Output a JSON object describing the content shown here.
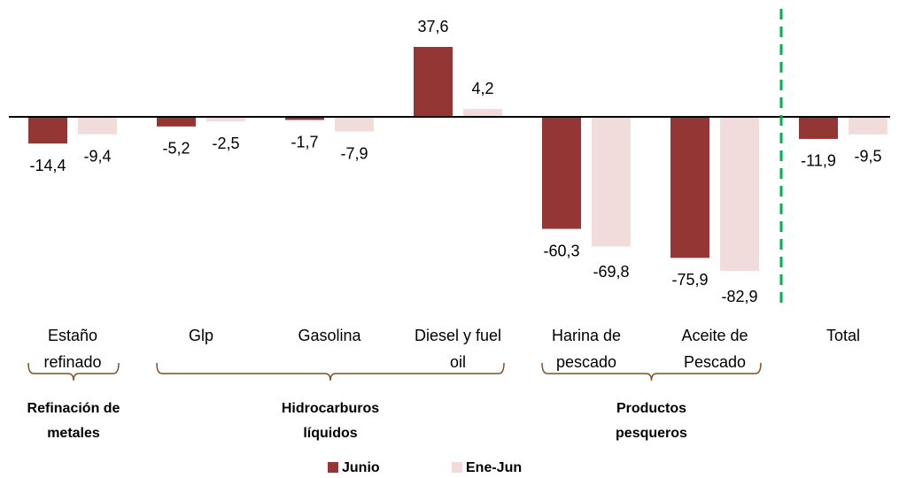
{
  "chart_data": {
    "type": "bar",
    "categories": [
      "Estaño refinado",
      "Glp",
      "Gasolina",
      "Diesel y fuel oil",
      "Harina de pescado",
      "Aceite de Pescado",
      "Total"
    ],
    "series": [
      {
        "name": "Junio",
        "color": "#943634",
        "values": [
          -14.4,
          -5.2,
          -1.7,
          37.6,
          -60.3,
          -75.9,
          -11.9
        ],
        "value_labels": [
          "-14,4",
          "-5,2",
          "-1,7",
          "37,6",
          "-60,3",
          "-75,9",
          "-11,9"
        ]
      },
      {
        "name": "Ene-Jun",
        "color": "#f2dcdb",
        "values": [
          -9.4,
          -2.5,
          -7.9,
          4.2,
          -69.8,
          -82.9,
          -9.5
        ],
        "value_labels": [
          "-9,4",
          "-2,5",
          "-7,9",
          "4,2",
          "-69,8",
          "-82,9",
          "-9,5"
        ]
      }
    ],
    "groups": [
      {
        "label": "Refinación de metales",
        "from": 0,
        "to": 0
      },
      {
        "label": "Hidrocarburos líquidos",
        "from": 1,
        "to": 3
      },
      {
        "label": "Productos pesqueros",
        "from": 4,
        "to": 5
      }
    ],
    "separator_color": "#00b050",
    "legend": "bottom"
  }
}
